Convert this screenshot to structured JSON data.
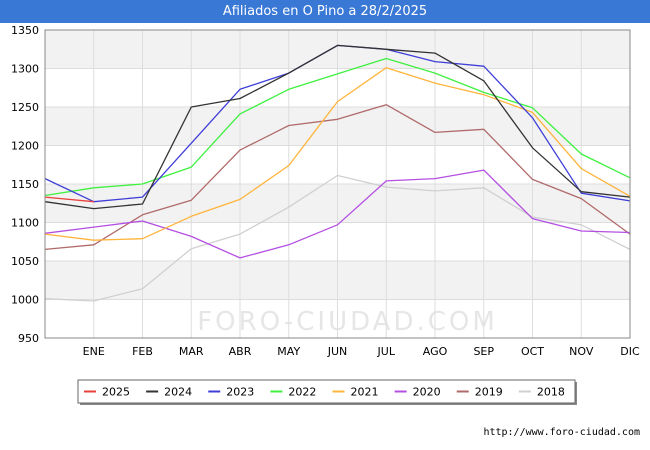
{
  "header": {
    "title": "Afiliados en O Pino a 28/2/2025"
  },
  "footer": {
    "url": "http://www.foro-ciudad.com"
  },
  "watermark": "FORO-CIUDAD.COM",
  "chart_data": {
    "type": "line",
    "title": "Afiliados en O Pino a 28/2/2025",
    "xlabel": "",
    "ylabel": "",
    "ylim": [
      950,
      1350
    ],
    "yticks": [
      950,
      1000,
      1050,
      1100,
      1150,
      1200,
      1250,
      1300,
      1350
    ],
    "categories": [
      "",
      "ENE",
      "FEB",
      "MAR",
      "ABR",
      "MAY",
      "JUN",
      "JUL",
      "AGO",
      "SEP",
      "OCT",
      "NOV",
      "DIC"
    ],
    "grid": true,
    "legend_position": "bottom",
    "series": [
      {
        "name": "2025",
        "color": "#e8413b",
        "values": [
          1133,
          1127,
          null,
          null,
          null,
          null,
          null,
          null,
          null,
          null,
          null,
          null,
          null
        ]
      },
      {
        "name": "2024",
        "color": "#333333",
        "values": [
          1127,
          1118,
          1124,
          1250,
          1261,
          1294,
          1330,
          1325,
          1320,
          1284,
          1197,
          1140,
          1133
        ]
      },
      {
        "name": "2023",
        "color": "#3f3fd8",
        "values": [
          1157,
          1127,
          1133,
          1203,
          1273,
          1294,
          1330,
          1325,
          1309,
          1303,
          1236,
          1138,
          1128
        ]
      },
      {
        "name": "2022",
        "color": "#3ff03f",
        "values": [
          1135,
          1145,
          1150,
          1172,
          1241,
          1273,
          1293,
          1313,
          1294,
          1269,
          1249,
          1189,
          1158
        ]
      },
      {
        "name": "2021",
        "color": "#ffb43c",
        "values": [
          1085,
          1077,
          1079,
          1108,
          1130,
          1174,
          1257,
          1301,
          1281,
          1266,
          1243,
          1170,
          1134
        ]
      },
      {
        "name": "2020",
        "color": "#b44fe2",
        "values": [
          1086,
          1094,
          1102,
          1082,
          1054,
          1071,
          1097,
          1154,
          1157,
          1168,
          1105,
          1089,
          1087
        ]
      },
      {
        "name": "2019",
        "color": "#b06a6a",
        "values": [
          1065,
          1071,
          1110,
          1129,
          1194,
          1226,
          1234,
          1253,
          1217,
          1221,
          1156,
          1131,
          1085
        ]
      },
      {
        "name": "2018",
        "color": "#d0d0d0",
        "values": [
          1001,
          998,
          1014,
          1066,
          1085,
          1120,
          1161,
          1146,
          1141,
          1145,
          1107,
          1097,
          1065
        ]
      }
    ]
  }
}
